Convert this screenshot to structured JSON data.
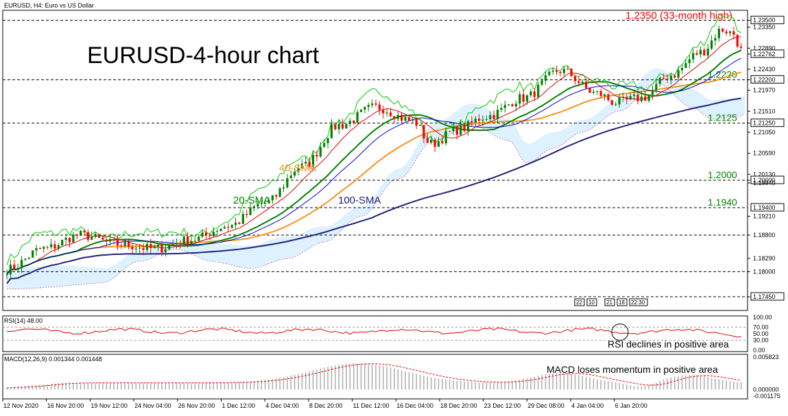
{
  "header": {
    "symbol_label": "EURUSD, H4:  Euro vs US Dollar"
  },
  "chart_data": {
    "type": "candlestick",
    "title": "EURUSD-4-hour chart",
    "y_axis": {
      "ylim": [
        1.1715,
        1.2372
      ],
      "tick_labels": [
        "1.23500",
        "1.23350",
        "1.22890",
        "1.22762",
        "1.22430",
        "1.22200",
        "1.21970",
        "1.21510",
        "1.21250",
        "1.21050",
        "1.20590",
        "1.20130",
        "1.20000",
        "1.19940",
        "1.19210",
        "1.18800",
        "1.18290",
        "1.18000",
        "1.17450"
      ],
      "tick_values": [
        1.235,
        1.2335,
        1.2289,
        1.22762,
        1.2243,
        1.222,
        1.2197,
        1.2151,
        1.2125,
        1.2105,
        1.2059,
        1.2013,
        1.2,
        1.1994,
        1.1921,
        1.188,
        1.1829,
        1.18,
        1.1745
      ],
      "highlighted": [
        "1.23500",
        "1.22762",
        "1.22200",
        "1.21250",
        "1.20000",
        "1.19400",
        "1.17450"
      ]
    },
    "x_axis": {
      "tick_labels": [
        "12 Nov 2020",
        "16 Nov 20:00",
        "19 Nov 12:00",
        "24 Nov 04:00",
        "26 Nov 20:00",
        "1 Dec 12:00",
        "4 Dec 04:00",
        "8 Dec 20:00",
        "11 Dec 12:00",
        "16 Dec 04:00",
        "18 Dec 20:00",
        "23 Dec 12:00",
        "29 Dec 08:00",
        "4 Jan 04:00",
        "6 Jan 20:00"
      ]
    },
    "levels": [
      {
        "value": 1.235,
        "label": "1.2350 (33-month high)",
        "color": "#ff0000"
      },
      {
        "value": 1.222,
        "label": "1.2220",
        "color": "#008000"
      },
      {
        "value": 1.2125,
        "label": "1.2125",
        "color": "#008000"
      },
      {
        "value": 1.2,
        "label": "1.2000",
        "color": "#008000"
      },
      {
        "value": 1.194,
        "label": "1.1940",
        "color": "#008000"
      },
      {
        "value": 1.188,
        "label": "",
        "color": "#000000"
      },
      {
        "value": 1.18,
        "label": "",
        "color": "#000000"
      },
      {
        "value": 1.1745,
        "label": "",
        "color": "#000000"
      }
    ],
    "annotations": [
      {
        "text": "20-SMA",
        "color": "#008000"
      },
      {
        "text": "40-SMA",
        "color": "#f7931e"
      },
      {
        "text": "100-SMA",
        "color": "#1f1f7a"
      }
    ],
    "period_box": [
      "22",
      "10",
      "21",
      "18",
      "22:30"
    ],
    "series_colors": {
      "candle_up": "#008000",
      "candle_down": "#ff0000",
      "sma20": "#008000",
      "sma40": "#f7931e",
      "sma100": "#1f1f7a",
      "ichimoku_cloud": "#87cefa",
      "chikou": "#00c800",
      "tenkan": "#e00000",
      "kijun": "#0000cc"
    },
    "rsi": {
      "label": "RSI(14) 48.00",
      "tick_labels": [
        "100.00",
        "70.00",
        "50.00",
        "30.00",
        "0.00"
      ],
      "tick_values": [
        100,
        70,
        50,
        30,
        0
      ],
      "annotation": "RSI declines in positive area",
      "color": "#e00000"
    },
    "macd": {
      "label": "MACD(12,26,9) 0.001344 0.001448",
      "tick_labels": [
        "0.005823",
        "0.000000",
        "-0.001175"
      ],
      "tick_values": [
        0.005823,
        0,
        -0.001175
      ],
      "annotation": "MACD loses momentum in positive area"
    }
  }
}
